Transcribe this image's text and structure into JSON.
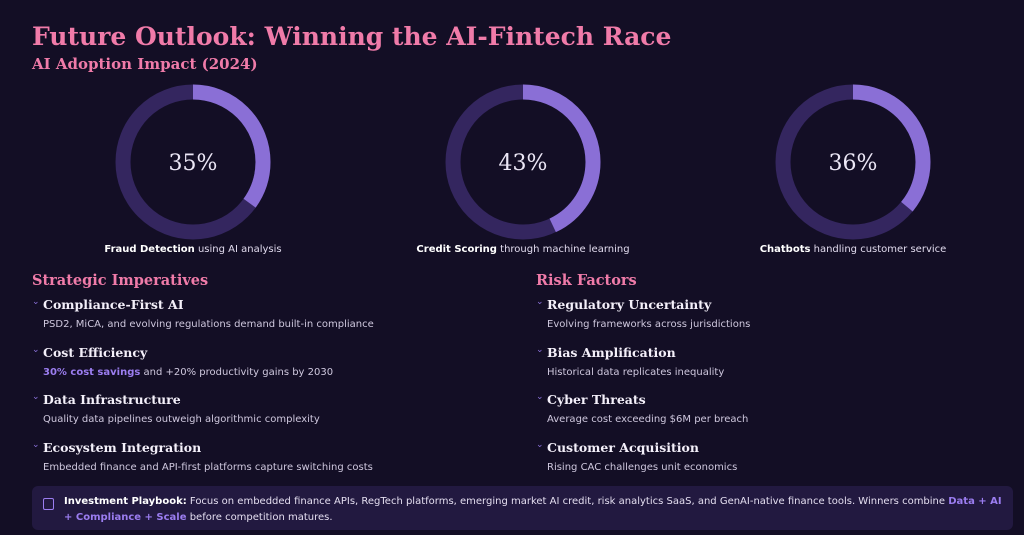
{
  "header": {
    "title": "Future Outlook: Winning the AI-Fintech Race",
    "subtitle": "AI Adoption Impact (2024)"
  },
  "metrics": [
    {
      "value": 35,
      "value_label": "35%",
      "name": "Fraud Detection",
      "text": "using AI analysis"
    },
    {
      "value": 43,
      "value_label": "43%",
      "name": "Credit Scoring",
      "text": "through machine learning"
    },
    {
      "value": 36,
      "value_label": "36%",
      "name": "Chatbots",
      "text": "handling customer service"
    }
  ],
  "strategic": {
    "title": "Strategic Imperatives",
    "items": [
      {
        "heading": "Compliance-First AI",
        "text": "PSD2, MiCA, and evolving regulations demand built-in compliance"
      },
      {
        "heading": "Cost Efficiency",
        "highlight": "30% cost savings",
        "text": "and +20% productivity gains by 2030"
      },
      {
        "heading": "Data Infrastructure",
        "text": "Quality data pipelines outweigh algorithmic complexity"
      },
      {
        "heading": "Ecosystem Integration",
        "text": "Embedded finance and API-first platforms capture switching costs"
      }
    ]
  },
  "risks": {
    "title": "Risk Factors",
    "items": [
      {
        "heading": "Regulatory Uncertainty",
        "text": "Evolving frameworks across jurisdictions"
      },
      {
        "heading": "Bias Amplification",
        "text": "Historical data replicates inequality"
      },
      {
        "heading": "Cyber Threats",
        "text": "Average cost exceeding $6M per breach"
      },
      {
        "heading": "Customer Acquisition",
        "text": "Rising CAC challenges unit economics"
      }
    ]
  },
  "playbook": {
    "label": "Investment Playbook:",
    "text": "Focus on embedded finance APIs, RegTech platforms, emerging market AI credit, risk analytics SaaS, and GenAI-native finance tools. Winners combine",
    "highlight": "Data + AI + Compliance + Scale",
    "tail": "before competition matures."
  }
}
